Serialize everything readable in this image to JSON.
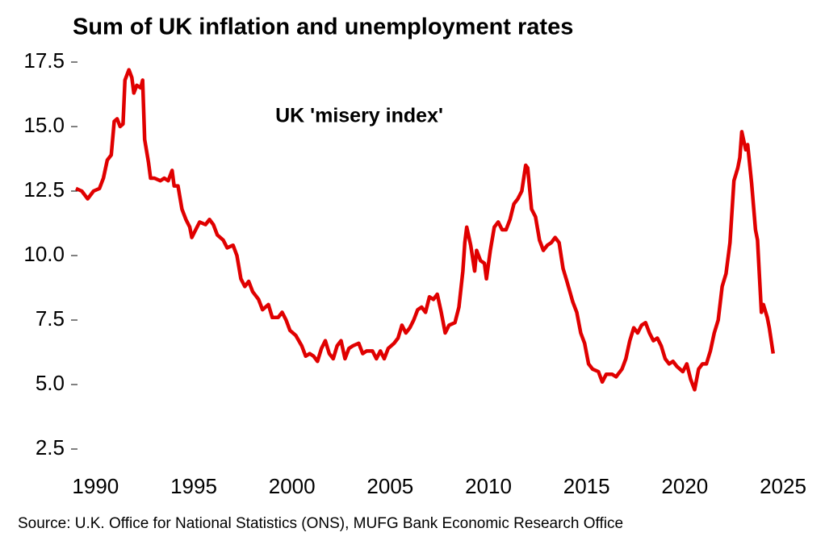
{
  "chart_data": {
    "type": "line",
    "title": "Sum of UK inflation and unemployment rates",
    "annotation": "UK 'misery index'",
    "source": "Source: U.K. Office for National Statistics (ONS), MUFG Bank Economic Research Office",
    "xlim": [
      1989,
      2025
    ],
    "xticks": [
      1990,
      1995,
      2000,
      2005,
      2010,
      2015,
      2020,
      2025
    ],
    "ylim": [
      2.5,
      17.5
    ],
    "yticks": [
      {
        "value": 2.5,
        "label": "2.5"
      },
      {
        "value": 5,
        "label": "5.0"
      },
      {
        "value": 7.5,
        "label": "7.5"
      },
      {
        "value": 10,
        "label": "10.0"
      },
      {
        "value": 12.5,
        "label": "12.5"
      },
      {
        "value": 15,
        "label": "15.0"
      },
      {
        "value": 17.5,
        "label": "17.5"
      }
    ],
    "series": [
      {
        "name": "UK 'misery index'",
        "color": "#e00000",
        "x": [
          1989.0,
          1989.3,
          1989.6,
          1989.9,
          1990.2,
          1990.4,
          1990.6,
          1990.8,
          1990.95,
          1991.1,
          1991.25,
          1991.4,
          1991.5,
          1991.7,
          1991.85,
          1991.95,
          1992.1,
          1992.3,
          1992.4,
          1992.5,
          1992.7,
          1992.8,
          1993.0,
          1993.3,
          1993.5,
          1993.7,
          1993.9,
          1994.0,
          1994.2,
          1994.4,
          1994.6,
          1994.8,
          1994.9,
          1995.1,
          1995.3,
          1995.6,
          1995.8,
          1996.0,
          1996.2,
          1996.5,
          1996.7,
          1997.0,
          1997.2,
          1997.4,
          1997.6,
          1997.8,
          1998.0,
          1998.3,
          1998.5,
          1998.8,
          1999.0,
          1999.3,
          1999.5,
          1999.7,
          1999.9,
          2000.2,
          2000.5,
          2000.7,
          2000.9,
          2001.1,
          2001.3,
          2001.5,
          2001.7,
          2001.9,
          2002.1,
          2002.3,
          2002.5,
          2002.7,
          2002.9,
          2003.1,
          2003.4,
          2003.6,
          2003.8,
          2004.1,
          2004.3,
          2004.5,
          2004.7,
          2004.9,
          2005.2,
          2005.4,
          2005.6,
          2005.8,
          2006.0,
          2006.2,
          2006.4,
          2006.6,
          2006.8,
          2007.0,
          2007.2,
          2007.4,
          2007.6,
          2007.8,
          2008.0,
          2008.3,
          2008.5,
          2008.7,
          2008.8,
          2008.9,
          2009.1,
          2009.3,
          2009.4,
          2009.6,
          2009.8,
          2009.9,
          2010.1,
          2010.3,
          2010.5,
          2010.7,
          2010.9,
          2011.1,
          2011.3,
          2011.5,
          2011.7,
          2011.9,
          2012.0,
          2012.2,
          2012.4,
          2012.6,
          2012.8,
          2013.0,
          2013.2,
          2013.4,
          2013.6,
          2013.8,
          2014.0,
          2014.3,
          2014.5,
          2014.7,
          2014.9,
          2015.1,
          2015.3,
          2015.6,
          2015.8,
          2016.0,
          2016.3,
          2016.5,
          2016.8,
          2017.0,
          2017.2,
          2017.4,
          2017.6,
          2017.8,
          2018.0,
          2018.2,
          2018.4,
          2018.6,
          2018.8,
          2019.0,
          2019.2,
          2019.4,
          2019.6,
          2019.9,
          2020.1,
          2020.3,
          2020.5,
          2020.7,
          2020.9,
          2021.1,
          2021.3,
          2021.5,
          2021.7,
          2021.9,
          2022.1,
          2022.3,
          2022.5,
          2022.7,
          2022.8,
          2022.9,
          2023.1,
          2023.2,
          2023.4,
          2023.6,
          2023.7,
          2023.9,
          2024.0,
          2024.2,
          2024.3,
          2024.5
        ],
        "values": [
          12.6,
          12.5,
          12.2,
          12.5,
          12.6,
          13.0,
          13.7,
          13.9,
          15.2,
          15.3,
          15.0,
          15.1,
          16.8,
          17.2,
          16.9,
          16.3,
          16.6,
          16.5,
          16.8,
          14.5,
          13.6,
          13.0,
          13.0,
          12.9,
          13.0,
          12.9,
          13.3,
          12.7,
          12.7,
          11.8,
          11.4,
          11.1,
          10.7,
          11.0,
          11.3,
          11.2,
          11.4,
          11.2,
          10.8,
          10.6,
          10.3,
          10.4,
          10.0,
          9.1,
          8.8,
          9.0,
          8.6,
          8.3,
          7.9,
          8.1,
          7.6,
          7.6,
          7.8,
          7.5,
          7.1,
          6.9,
          6.5,
          6.1,
          6.2,
          6.1,
          5.9,
          6.4,
          6.7,
          6.2,
          6.0,
          6.5,
          6.7,
          6.0,
          6.4,
          6.5,
          6.6,
          6.2,
          6.3,
          6.3,
          6.0,
          6.3,
          6.0,
          6.4,
          6.6,
          6.8,
          7.3,
          7.0,
          7.2,
          7.5,
          7.9,
          8.0,
          7.8,
          8.4,
          8.3,
          8.5,
          7.8,
          7.0,
          7.3,
          7.4,
          8.0,
          9.4,
          10.5,
          11.1,
          10.4,
          9.4,
          10.2,
          9.8,
          9.7,
          9.1,
          10.2,
          11.1,
          11.3,
          11.0,
          11.0,
          11.4,
          12.0,
          12.2,
          12.5,
          13.5,
          13.4,
          11.8,
          11.5,
          10.6,
          10.2,
          10.4,
          10.5,
          10.7,
          10.5,
          9.5,
          9.0,
          8.2,
          7.8,
          7.0,
          6.6,
          5.8,
          5.6,
          5.5,
          5.1,
          5.4,
          5.4,
          5.3,
          5.6,
          6.0,
          6.7,
          7.2,
          7.0,
          7.3,
          7.4,
          7.0,
          6.7,
          6.8,
          6.5,
          6.0,
          5.8,
          5.9,
          5.7,
          5.5,
          5.8,
          5.2,
          4.8,
          5.6,
          5.8,
          5.8,
          6.3,
          7.0,
          7.5,
          8.8,
          9.3,
          10.5,
          12.9,
          13.4,
          13.8,
          14.8,
          14.1,
          14.3,
          12.8,
          11.0,
          10.6,
          7.8,
          8.1,
          7.6,
          7.2,
          6.2
        ]
      }
    ]
  }
}
